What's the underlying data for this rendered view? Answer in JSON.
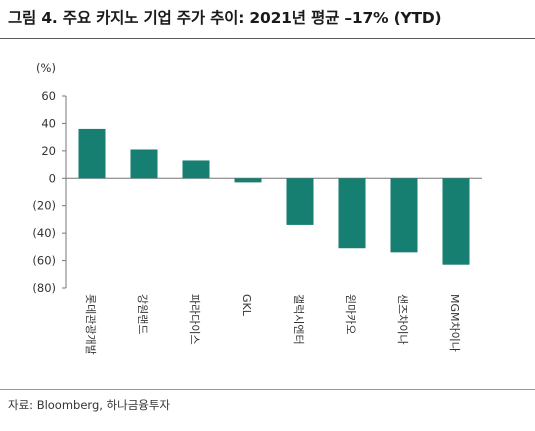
{
  "header": {
    "title": "그림 4. 주요 카지노 기업 주가 추이: 2021년 평균 –17% (YTD)"
  },
  "footer": {
    "source": "자료: Bloomberg, 하나금융투자"
  },
  "chart_data": {
    "type": "bar",
    "unit_label": "(%)",
    "categories": [
      "롯데관광개발",
      "강원랜드",
      "파라다이스",
      "GKL",
      "갤럭시엔터",
      "윈마카오",
      "샌즈차이나",
      "MGM차이나"
    ],
    "values": [
      36,
      21,
      13,
      -3,
      -34,
      -51,
      -54,
      -63
    ],
    "ylim": [
      -80,
      60
    ],
    "yticks": [
      60,
      40,
      20,
      0,
      -20,
      -40,
      -60,
      -80
    ],
    "ytick_labels": [
      "60",
      "40",
      "20",
      "0",
      "(20)",
      "(40)",
      "(60)",
      "(80)"
    ],
    "bar_color": "#167f72",
    "grid": false,
    "legend": "none"
  }
}
